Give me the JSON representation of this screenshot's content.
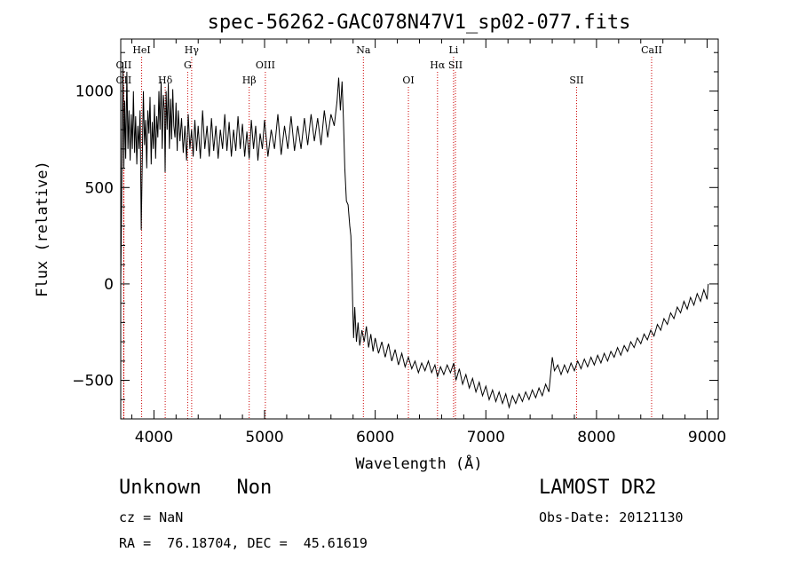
{
  "chart_data": {
    "type": "line",
    "title": "spec-56262-GAC078N47V1_sp02-077.fits",
    "xlabel": "Wavelength (Å)",
    "ylabel": "Flux (relative)",
    "xlim": [
      3700,
      9100
    ],
    "ylim": [
      -700,
      1270
    ],
    "xticks": [
      4000,
      5000,
      6000,
      7000,
      8000,
      9000
    ],
    "xtick_labels": [
      "4000",
      "5000",
      "6000",
      "7000",
      "8000",
      "9000"
    ],
    "yticks": [
      -500,
      0,
      500,
      1000
    ],
    "ytick_labels": [
      "−500",
      "0",
      "500",
      "1000"
    ],
    "grid": false,
    "line_color": "#000000",
    "marker_color": "#cc0000",
    "series": [
      {
        "points": [
          [
            3700,
            0
          ],
          [
            3705,
            250
          ],
          [
            3712,
            700
          ],
          [
            3720,
            1150
          ],
          [
            3728,
            600
          ],
          [
            3736,
            950
          ],
          [
            3745,
            650
          ],
          [
            3755,
            1100
          ],
          [
            3765,
            700
          ],
          [
            3775,
            900
          ],
          [
            3785,
            640
          ],
          [
            3795,
            880
          ],
          [
            3805,
            700
          ],
          [
            3815,
            1000
          ],
          [
            3825,
            680
          ],
          [
            3835,
            870
          ],
          [
            3845,
            620
          ],
          [
            3855,
            820
          ],
          [
            3865,
            700
          ],
          [
            3875,
            900
          ],
          [
            3885,
            280
          ],
          [
            3895,
            650
          ],
          [
            3905,
            1000
          ],
          [
            3915,
            720
          ],
          [
            3925,
            850
          ],
          [
            3935,
            600
          ],
          [
            3945,
            900
          ],
          [
            3955,
            780
          ],
          [
            3965,
            970
          ],
          [
            3975,
            620
          ],
          [
            3985,
            840
          ],
          [
            3995,
            700
          ],
          [
            4005,
            930
          ],
          [
            4015,
            650
          ],
          [
            4025,
            870
          ],
          [
            4035,
            760
          ],
          [
            4045,
            1000
          ],
          [
            4055,
            800
          ],
          [
            4065,
            1050
          ],
          [
            4075,
            700
          ],
          [
            4085,
            980
          ],
          [
            4095,
            900
          ],
          [
            4101,
            580
          ],
          [
            4110,
            1000
          ],
          [
            4120,
            800
          ],
          [
            4130,
            1040
          ],
          [
            4140,
            700
          ],
          [
            4150,
            960
          ],
          [
            4160,
            750
          ],
          [
            4170,
            1010
          ],
          [
            4180,
            820
          ],
          [
            4190,
            760
          ],
          [
            4200,
            940
          ],
          [
            4210,
            690
          ],
          [
            4220,
            900
          ],
          [
            4235,
            740
          ],
          [
            4250,
            860
          ],
          [
            4265,
            680
          ],
          [
            4280,
            820
          ],
          [
            4295,
            640
          ],
          [
            4310,
            880
          ],
          [
            4325,
            700
          ],
          [
            4340,
            800
          ],
          [
            4355,
            660
          ],
          [
            4370,
            850
          ],
          [
            4385,
            690
          ],
          [
            4400,
            820
          ],
          [
            4420,
            650
          ],
          [
            4440,
            900
          ],
          [
            4460,
            700
          ],
          [
            4480,
            820
          ],
          [
            4500,
            660
          ],
          [
            4520,
            860
          ],
          [
            4540,
            690
          ],
          [
            4560,
            820
          ],
          [
            4580,
            650
          ],
          [
            4600,
            800
          ],
          [
            4620,
            700
          ],
          [
            4640,
            880
          ],
          [
            4660,
            690
          ],
          [
            4680,
            840
          ],
          [
            4700,
            660
          ],
          [
            4720,
            800
          ],
          [
            4740,
            690
          ],
          [
            4760,
            870
          ],
          [
            4780,
            700
          ],
          [
            4800,
            830
          ],
          [
            4820,
            660
          ],
          [
            4840,
            790
          ],
          [
            4861,
            650
          ],
          [
            4880,
            850
          ],
          [
            4900,
            700
          ],
          [
            4920,
            820
          ],
          [
            4940,
            640
          ],
          [
            4960,
            780
          ],
          [
            4980,
            700
          ],
          [
            5000,
            850
          ],
          [
            5030,
            660
          ],
          [
            5060,
            800
          ],
          [
            5090,
            700
          ],
          [
            5120,
            880
          ],
          [
            5150,
            670
          ],
          [
            5180,
            820
          ],
          [
            5210,
            700
          ],
          [
            5240,
            870
          ],
          [
            5270,
            690
          ],
          [
            5300,
            820
          ],
          [
            5330,
            700
          ],
          [
            5360,
            860
          ],
          [
            5390,
            720
          ],
          [
            5420,
            880
          ],
          [
            5450,
            740
          ],
          [
            5480,
            860
          ],
          [
            5510,
            720
          ],
          [
            5540,
            900
          ],
          [
            5570,
            760
          ],
          [
            5600,
            880
          ],
          [
            5630,
            820
          ],
          [
            5655,
            950
          ],
          [
            5670,
            1070
          ],
          [
            5685,
            900
          ],
          [
            5700,
            1050
          ],
          [
            5712,
            860
          ],
          [
            5725,
            600
          ],
          [
            5740,
            430
          ],
          [
            5755,
            410
          ],
          [
            5770,
            300
          ],
          [
            5780,
            250
          ],
          [
            5790,
            50
          ],
          [
            5798,
            -150
          ],
          [
            5805,
            -280
          ],
          [
            5815,
            -120
          ],
          [
            5830,
            -300
          ],
          [
            5845,
            -200
          ],
          [
            5860,
            -320
          ],
          [
            5880,
            -240
          ],
          [
            5900,
            -300
          ],
          [
            5920,
            -220
          ],
          [
            5940,
            -330
          ],
          [
            5960,
            -260
          ],
          [
            5980,
            -350
          ],
          [
            6000,
            -280
          ],
          [
            6030,
            -360
          ],
          [
            6060,
            -300
          ],
          [
            6090,
            -380
          ],
          [
            6120,
            -310
          ],
          [
            6150,
            -400
          ],
          [
            6180,
            -340
          ],
          [
            6210,
            -420
          ],
          [
            6240,
            -360
          ],
          [
            6270,
            -430
          ],
          [
            6300,
            -380
          ],
          [
            6330,
            -440
          ],
          [
            6360,
            -400
          ],
          [
            6390,
            -460
          ],
          [
            6420,
            -410
          ],
          [
            6450,
            -450
          ],
          [
            6480,
            -400
          ],
          [
            6510,
            -460
          ],
          [
            6540,
            -420
          ],
          [
            6563,
            -480
          ],
          [
            6590,
            -430
          ],
          [
            6620,
            -470
          ],
          [
            6650,
            -420
          ],
          [
            6680,
            -460
          ],
          [
            6710,
            -410
          ],
          [
            6730,
            -500
          ],
          [
            6760,
            -440
          ],
          [
            6790,
            -520
          ],
          [
            6820,
            -470
          ],
          [
            6850,
            -540
          ],
          [
            6880,
            -490
          ],
          [
            6910,
            -560
          ],
          [
            6940,
            -510
          ],
          [
            6970,
            -580
          ],
          [
            7000,
            -530
          ],
          [
            7030,
            -600
          ],
          [
            7060,
            -550
          ],
          [
            7090,
            -610
          ],
          [
            7120,
            -560
          ],
          [
            7150,
            -620
          ],
          [
            7180,
            -570
          ],
          [
            7210,
            -640
          ],
          [
            7240,
            -580
          ],
          [
            7270,
            -620
          ],
          [
            7300,
            -570
          ],
          [
            7330,
            -610
          ],
          [
            7360,
            -560
          ],
          [
            7390,
            -600
          ],
          [
            7420,
            -550
          ],
          [
            7450,
            -590
          ],
          [
            7480,
            -540
          ],
          [
            7510,
            -580
          ],
          [
            7540,
            -520
          ],
          [
            7570,
            -560
          ],
          [
            7600,
            -380
          ],
          [
            7620,
            -450
          ],
          [
            7650,
            -420
          ],
          [
            7680,
            -470
          ],
          [
            7710,
            -420
          ],
          [
            7740,
            -460
          ],
          [
            7770,
            -410
          ],
          [
            7800,
            -450
          ],
          [
            7830,
            -400
          ],
          [
            7860,
            -440
          ],
          [
            7890,
            -390
          ],
          [
            7920,
            -430
          ],
          [
            7950,
            -380
          ],
          [
            7980,
            -420
          ],
          [
            8010,
            -370
          ],
          [
            8040,
            -410
          ],
          [
            8070,
            -360
          ],
          [
            8100,
            -400
          ],
          [
            8130,
            -350
          ],
          [
            8160,
            -380
          ],
          [
            8190,
            -330
          ],
          [
            8220,
            -370
          ],
          [
            8250,
            -320
          ],
          [
            8280,
            -350
          ],
          [
            8310,
            -300
          ],
          [
            8340,
            -330
          ],
          [
            8370,
            -280
          ],
          [
            8400,
            -310
          ],
          [
            8430,
            -260
          ],
          [
            8460,
            -290
          ],
          [
            8490,
            -240
          ],
          [
            8520,
            -270
          ],
          [
            8550,
            -210
          ],
          [
            8580,
            -240
          ],
          [
            8610,
            -180
          ],
          [
            8640,
            -210
          ],
          [
            8670,
            -150
          ],
          [
            8700,
            -180
          ],
          [
            8730,
            -120
          ],
          [
            8760,
            -150
          ],
          [
            8790,
            -90
          ],
          [
            8820,
            -130
          ],
          [
            8850,
            -70
          ],
          [
            8880,
            -110
          ],
          [
            8910,
            -50
          ],
          [
            8940,
            -90
          ],
          [
            8970,
            -30
          ],
          [
            9000,
            -80
          ],
          [
            9010,
            0
          ]
        ]
      }
    ],
    "line_markers": [
      {
        "x": 3727,
        "label": "OII",
        "row": 1
      },
      {
        "x": 3727,
        "label": "OII",
        "row": 2
      },
      {
        "x": 3889,
        "label": "HeI",
        "row": 0
      },
      {
        "x": 4102,
        "label": "Hδ",
        "row": 2
      },
      {
        "x": 4305,
        "label": "G",
        "row": 1
      },
      {
        "x": 4341,
        "label": "Hγ",
        "row": 0
      },
      {
        "x": 4861,
        "label": "Hβ",
        "row": 2
      },
      {
        "x": 5007,
        "label": "OIII",
        "row": 1
      },
      {
        "x": 5893,
        "label": "Na",
        "row": 0
      },
      {
        "x": 6300,
        "label": "OI",
        "row": 2
      },
      {
        "x": 6563,
        "label": "Hα",
        "row": 1
      },
      {
        "x": 6708,
        "label": "Li",
        "row": 0
      },
      {
        "x": 6725,
        "label": "SII",
        "row": 1
      },
      {
        "x": 7820,
        "label": "SII",
        "row": 2
      },
      {
        "x": 8498,
        "label": "CaII",
        "row": 0
      }
    ]
  },
  "info": {
    "class_label": "Unknown   Non",
    "survey_label": "LAMOST DR2",
    "cz_text": "cz = NaN",
    "obs_date_text": "Obs-Date: 20121130",
    "coords_text": "RA =  76.18704, DEC =  45.61619"
  }
}
